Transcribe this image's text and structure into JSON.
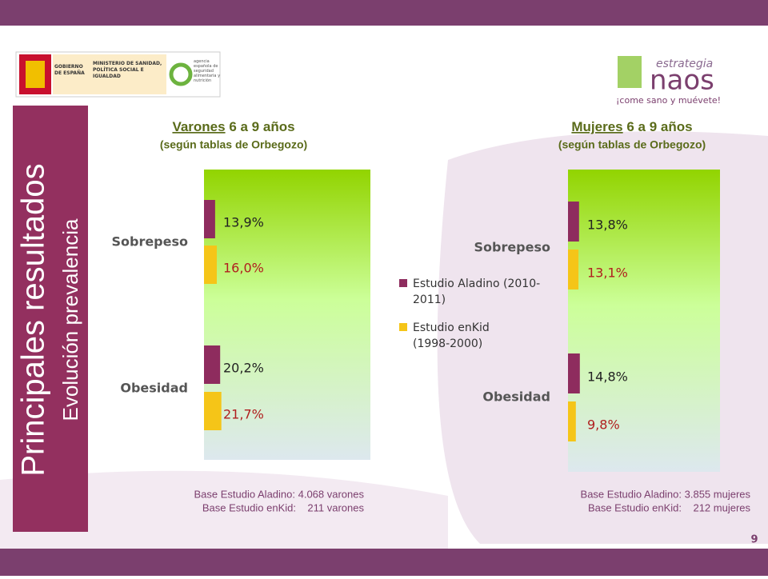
{
  "slide": {
    "title": "Principales resultados",
    "subtitle": "Evolución prevalencia",
    "logo_gov": "GOBIERNO DE ESPAÑA",
    "logo_ministry": "MINISTERIO DE SANIDAD, POLÍTICA SOCIAL E IGUALDAD",
    "logo_agency": "agencia española de seguridad alimentaria y nutrición",
    "logo_naos_top": "estrategia",
    "logo_naos": "naos",
    "logo_naos_tagline": "¡come sano y muévete!",
    "page_number": "9"
  },
  "chart_data": [
    {
      "type": "bar",
      "orientation": "horizontal",
      "title_underlined": "Varones",
      "title": "6 a 9 años",
      "subtitle": "(según tablas de Orbegozo)",
      "categories": [
        "Sobrepeso",
        "Obesidad"
      ],
      "series": [
        {
          "name": "Estudio Aladino (2010-2011)",
          "color": "#8e2c5e",
          "values": [
            13.9,
            20.2
          ],
          "value_labels": [
            "13,9%",
            "20,2%"
          ]
        },
        {
          "name": "Estudio enKid (1998-2000)",
          "color": "#f5c518",
          "values": [
            16.0,
            21.7
          ],
          "value_labels": [
            "16,0%",
            "21,7%"
          ]
        }
      ],
      "notes": [
        "Base Estudio Aladino: 4.068 varones",
        "Base Estudio enKid:    211 varones"
      ]
    },
    {
      "type": "bar",
      "orientation": "horizontal",
      "title_underlined": "Mujeres",
      "title": "6 a 9 años",
      "subtitle": "(según tablas de Orbegozo)",
      "categories": [
        "Sobrepeso",
        "Obesidad"
      ],
      "series": [
        {
          "color": "#8e2c5e",
          "values": [
            13.8,
            14.8
          ],
          "value_labels": [
            "13,8%",
            "14,8%"
          ]
        },
        {
          "color": "#f5c518",
          "values": [
            13.1,
            9.8
          ],
          "value_labels": [
            "13,1%",
            "9,8%"
          ]
        }
      ],
      "notes": [
        "Base Estudio Aladino: 3.855 mujeres",
        "Base Estudio enKid:    212 mujeres"
      ]
    }
  ]
}
